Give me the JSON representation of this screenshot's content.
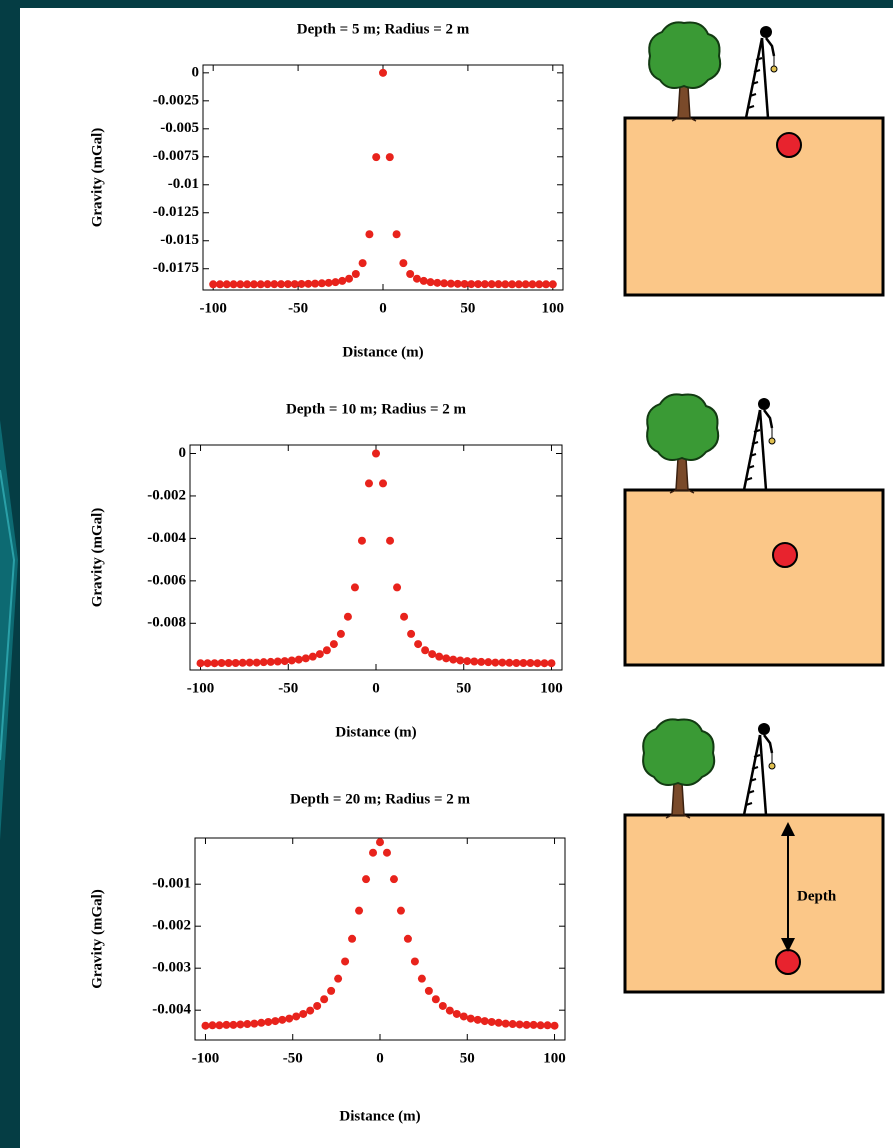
{
  "chart_data": [
    {
      "type": "scatter",
      "title": "Depth = 5 m; Radius = 2 m",
      "x_label": "Distance (m)",
      "y_label": "Gravity (mGal)",
      "color": "#e8231c",
      "x": [
        -100,
        -96,
        -92,
        -88,
        -84,
        -80,
        -76,
        -72,
        -68,
        -64,
        -60,
        -56,
        -52,
        -48,
        -44,
        -40,
        -36,
        -32,
        -28,
        -24,
        -20,
        -16,
        -12,
        -8,
        -4,
        0,
        4,
        8,
        12,
        16,
        20,
        24,
        28,
        32,
        36,
        40,
        44,
        48,
        52,
        56,
        60,
        64,
        68,
        72,
        76,
        80,
        84,
        88,
        92,
        96,
        100
      ],
      "values": [
        -0.01889,
        -0.01889,
        -0.01889,
        -0.01889,
        -0.01889,
        -0.01889,
        -0.01889,
        -0.01889,
        -0.01888,
        -0.01888,
        -0.01888,
        -0.01887,
        -0.01887,
        -0.01886,
        -0.01885,
        -0.01883,
        -0.0188,
        -0.01876,
        -0.0187,
        -0.01859,
        -0.01839,
        -0.01797,
        -0.017,
        -0.01442,
        -0.00753,
        0,
        -0.00753,
        -0.01442,
        -0.017,
        -0.01797,
        -0.01839,
        -0.01859,
        -0.0187,
        -0.01876,
        -0.0188,
        -0.01883,
        -0.01885,
        -0.01886,
        -0.01887,
        -0.01887,
        -0.01888,
        -0.01888,
        -0.01888,
        -0.01889,
        -0.01889,
        -0.01889,
        -0.01889,
        -0.01889,
        -0.01889,
        -0.01889,
        -0.01889
      ],
      "xlim": [
        -106,
        106
      ],
      "xticks": [
        -100,
        -50,
        0,
        50,
        100
      ],
      "ylim": [
        -0.0194,
        0.0007
      ],
      "yticks": [
        0,
        -0.0025,
        -0.005,
        -0.0075,
        -0.01,
        -0.0125,
        -0.015,
        -0.0175
      ]
    },
    {
      "type": "scatter",
      "title": "Depth = 10 m; Radius = 2 m",
      "x_label": "Distance (m)",
      "y_label": "Gravity (mGal)",
      "color": "#e8231c",
      "x": [
        -100,
        -96,
        -92,
        -88,
        -84,
        -80,
        -76,
        -72,
        -68,
        -64,
        -60,
        -56,
        -52,
        -48,
        -44,
        -40,
        -36,
        -32,
        -28,
        -24,
        -20,
        -16,
        -12,
        -8,
        -4,
        0,
        4,
        8,
        12,
        16,
        20,
        24,
        28,
        32,
        36,
        40,
        44,
        48,
        52,
        56,
        60,
        64,
        68,
        72,
        76,
        80,
        84,
        88,
        92,
        96,
        100
      ],
      "values": [
        -0.00988,
        -0.00988,
        -0.00988,
        -0.00987,
        -0.00987,
        -0.00987,
        -0.00986,
        -0.00985,
        -0.00985,
        -0.00983,
        -0.00982,
        -0.0098,
        -0.00978,
        -0.00975,
        -0.00971,
        -0.00965,
        -0.00957,
        -0.00945,
        -0.00927,
        -0.00898,
        -0.0085,
        -0.00769,
        -0.00631,
        -0.00411,
        -0.00141,
        0,
        -0.00141,
        -0.00411,
        -0.00631,
        -0.00769,
        -0.0085,
        -0.00898,
        -0.00927,
        -0.00945,
        -0.00957,
        -0.00965,
        -0.00971,
        -0.00975,
        -0.00978,
        -0.0098,
        -0.00982,
        -0.00983,
        -0.00985,
        -0.00985,
        -0.00986,
        -0.00987,
        -0.00987,
        -0.00987,
        -0.00988,
        -0.00988,
        -0.00988
      ],
      "xlim": [
        -106,
        106
      ],
      "xticks": [
        -100,
        -50,
        0,
        50,
        100
      ],
      "ylim": [
        -0.0102,
        0.0004
      ],
      "yticks": [
        0,
        -0.002,
        -0.004,
        -0.006,
        -0.008
      ]
    },
    {
      "type": "scatter",
      "title": "Depth = 20 m; Radius = 2 m",
      "x_label": "Distance (m)",
      "y_label": "Gravity (mGal)",
      "color": "#e8231c",
      "x": [
        -100,
        -96,
        -92,
        -88,
        -84,
        -80,
        -76,
        -72,
        -68,
        -64,
        -60,
        -56,
        -52,
        -48,
        -44,
        -40,
        -36,
        -32,
        -28,
        -24,
        -20,
        -16,
        -12,
        -8,
        -4,
        0,
        4,
        8,
        12,
        16,
        20,
        24,
        28,
        32,
        36,
        40,
        44,
        48,
        52,
        56,
        60,
        64,
        68,
        72,
        76,
        80,
        84,
        88,
        92,
        96,
        100
      ],
      "values": [
        -0.00437,
        -0.00436,
        -0.00436,
        -0.00435,
        -0.00435,
        -0.00434,
        -0.00433,
        -0.00432,
        -0.0043,
        -0.00428,
        -0.00426,
        -0.00423,
        -0.0042,
        -0.00415,
        -0.00409,
        -0.00401,
        -0.0039,
        -0.00374,
        -0.00354,
        -0.00325,
        -0.00284,
        -0.0023,
        -0.00163,
        -0.00088,
        -0.00025,
        0,
        -0.00025,
        -0.00088,
        -0.00163,
        -0.0023,
        -0.00284,
        -0.00325,
        -0.00354,
        -0.00374,
        -0.0039,
        -0.00401,
        -0.00409,
        -0.00415,
        -0.0042,
        -0.00423,
        -0.00426,
        -0.00428,
        -0.0043,
        -0.00432,
        -0.00433,
        -0.00434,
        -0.00435,
        -0.00435,
        -0.00436,
        -0.00436,
        -0.00437
      ],
      "xlim": [
        -106,
        106
      ],
      "xticks": [
        -100,
        -50,
        0,
        50,
        100
      ],
      "ylim": [
        -0.00471,
        0.0001
      ],
      "yticks": [
        -0.001,
        -0.002,
        -0.003,
        -0.004
      ]
    }
  ],
  "depth_label": "Depth"
}
